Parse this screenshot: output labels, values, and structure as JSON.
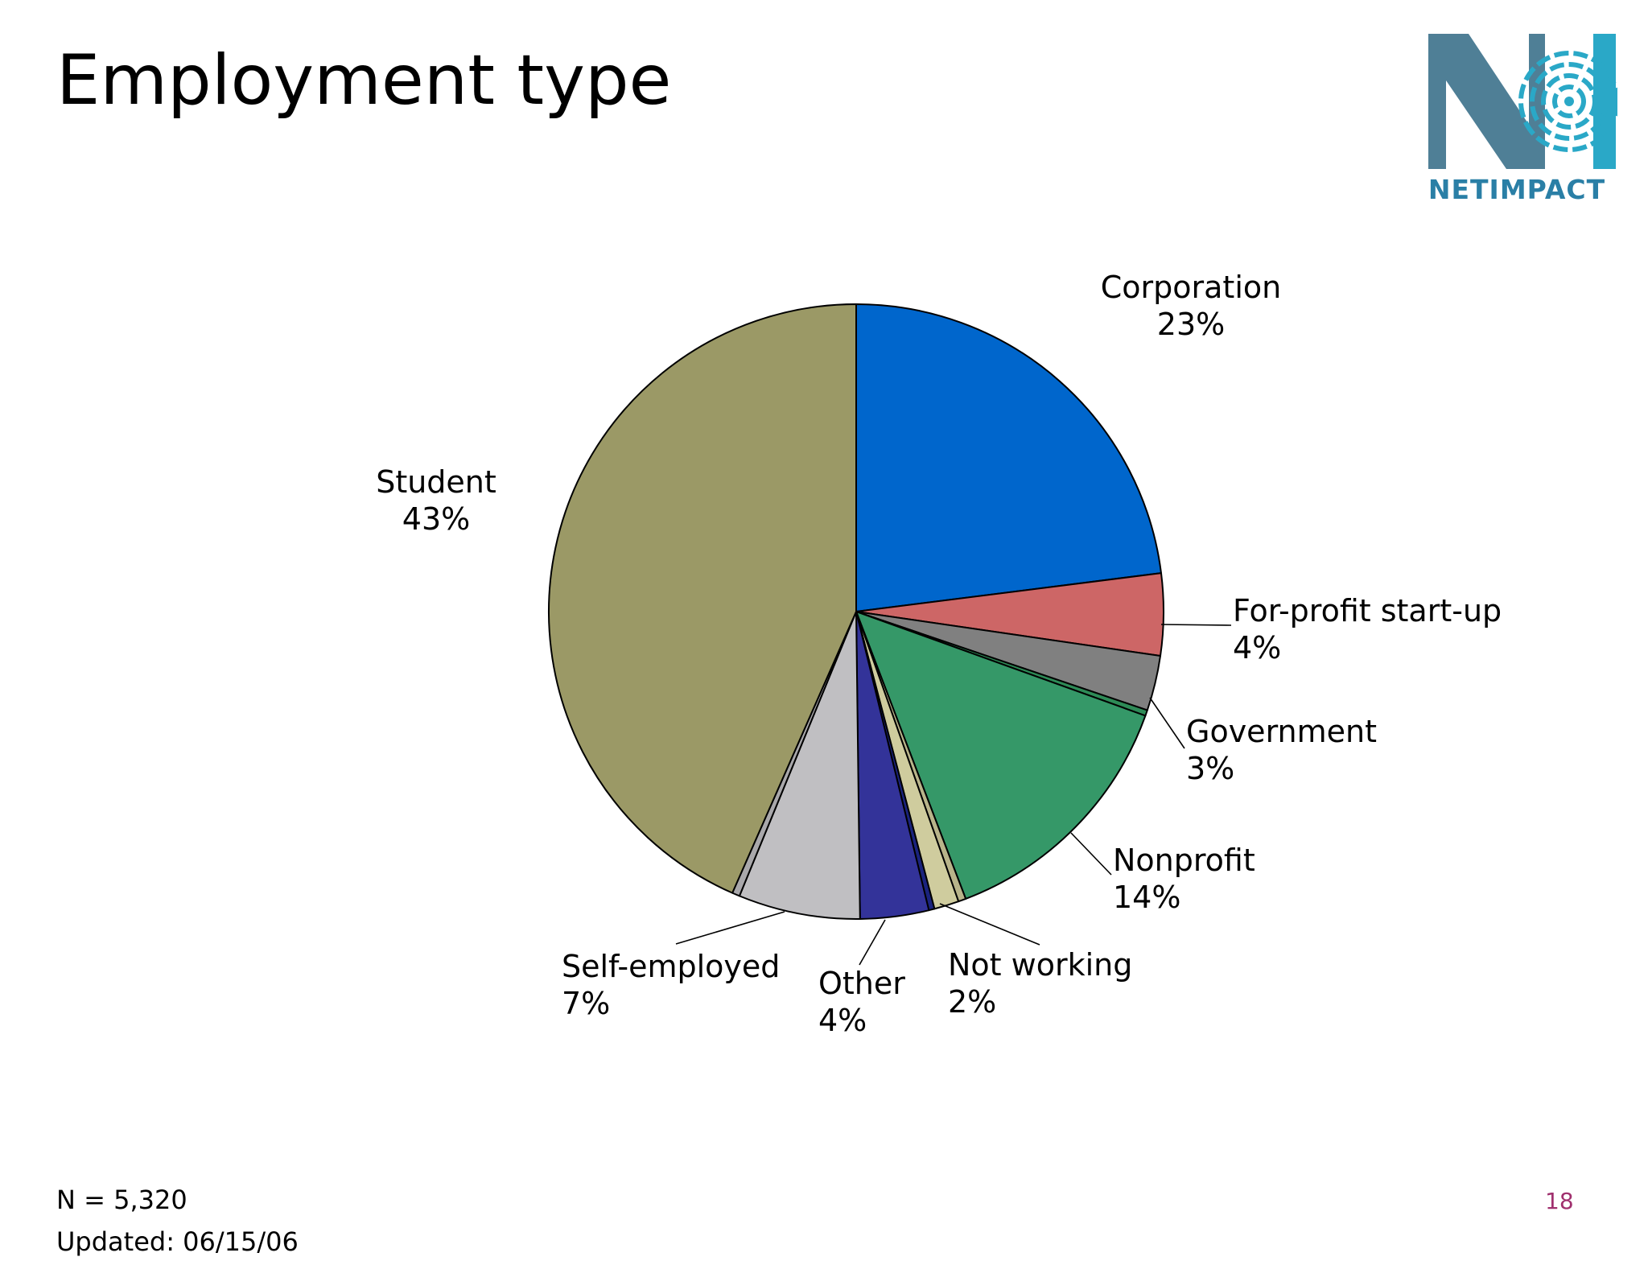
{
  "slide": {
    "title": "Employment type",
    "logo_text": "NETIMPACT",
    "footer_n": "N = 5,320",
    "footer_updated": "Updated: 06/15/06",
    "page_number": "18"
  },
  "chart_data": {
    "type": "pie",
    "title": "",
    "start": "12 o'clock",
    "direction": "clockwise",
    "slices": [
      {
        "name": "Corporation",
        "label": "23%",
        "value": 23.0,
        "color": "#0066cc"
      },
      {
        "name": "For-profit start-up",
        "label": "4%",
        "value": 4.3,
        "color": "#cd6666"
      },
      {
        "name": "Government",
        "label": "3%",
        "value": 2.9,
        "color": "#808080"
      },
      {
        "name": "",
        "label": "",
        "value": 0.3,
        "color": "#2e8b57"
      },
      {
        "name": "Nonprofit",
        "label": "14%",
        "value": 13.7,
        "color": "#359868"
      },
      {
        "name": "",
        "label": "",
        "value": 0.4,
        "color": "#b8b48a"
      },
      {
        "name": "Not working",
        "label": "2%",
        "value": 1.3,
        "color": "#cfcc9e"
      },
      {
        "name": "",
        "label": "",
        "value": 0.3,
        "color": "#1a237e"
      },
      {
        "name": "Other",
        "label": "4%",
        "value": 3.6,
        "color": "#333399"
      },
      {
        "name": "Self-employed",
        "label": "7%",
        "value": 6.4,
        "color": "#c0bfc2"
      },
      {
        "name": "",
        "label": "",
        "value": 0.4,
        "color": "#a9a8ab"
      },
      {
        "name": "Student",
        "label": "43%",
        "value": 43.4,
        "color": "#9b9966"
      }
    ]
  }
}
